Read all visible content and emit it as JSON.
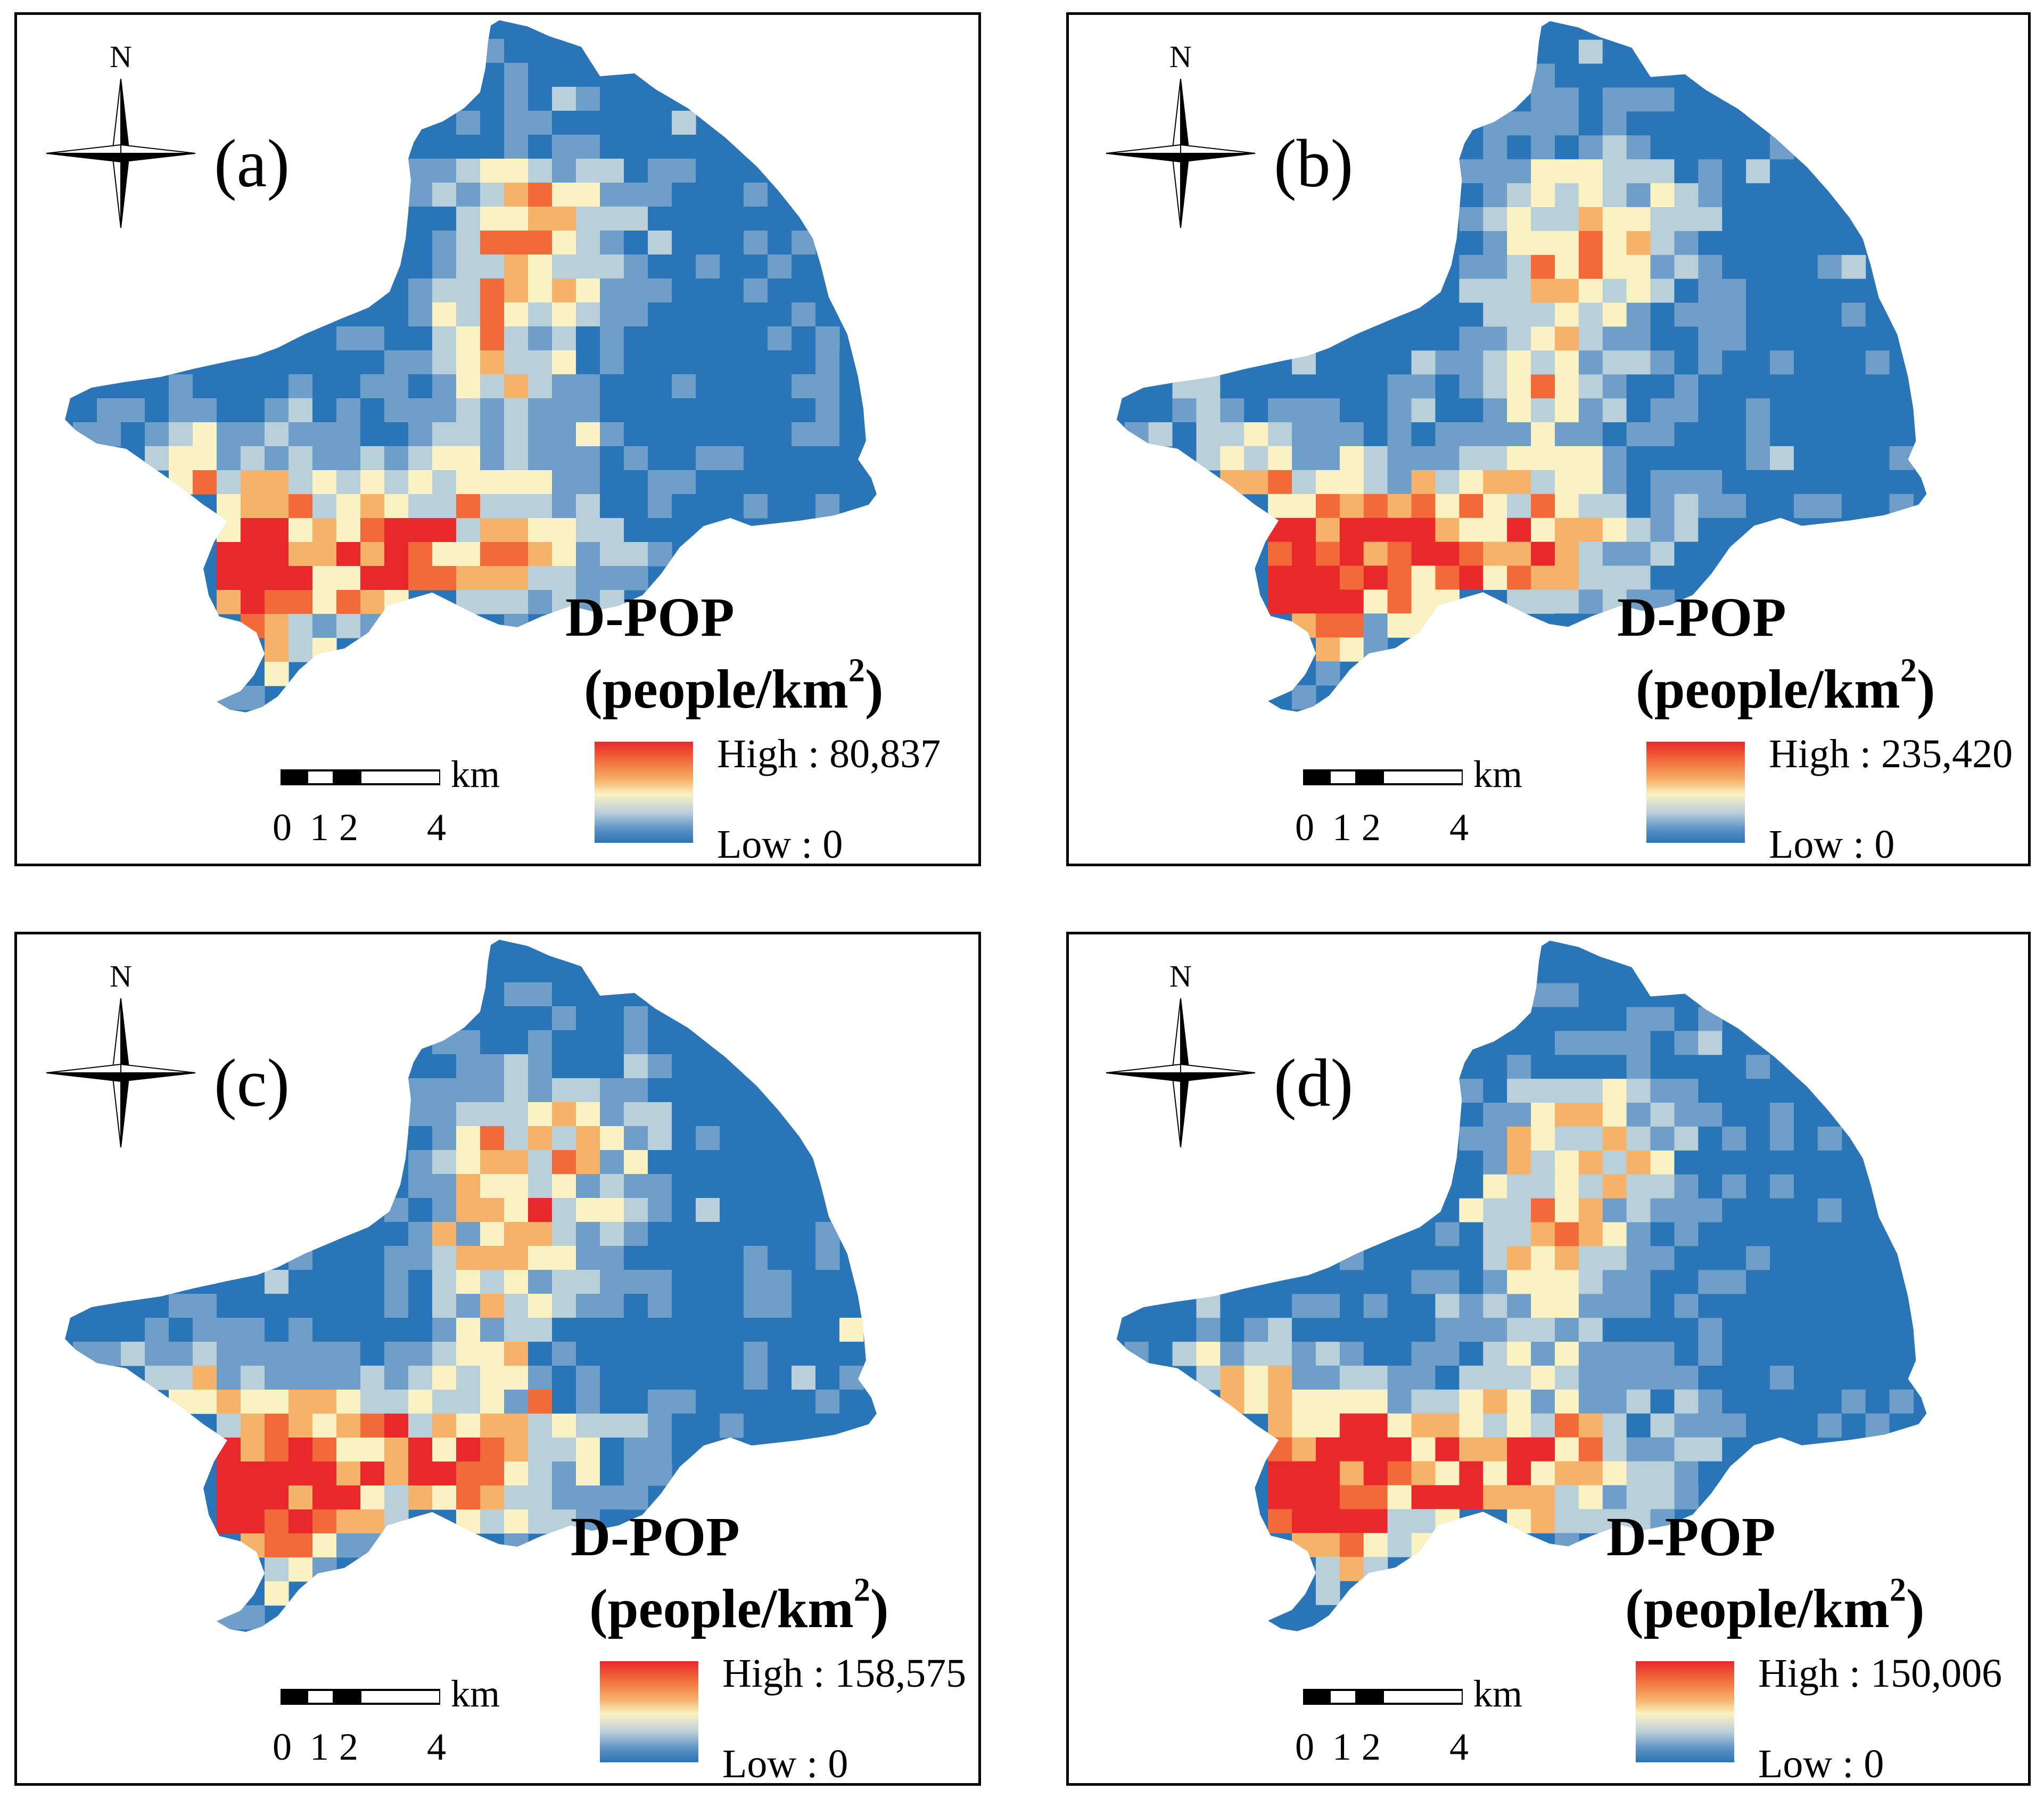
{
  "panels": [
    {
      "label": "(a)",
      "north": "N",
      "legend_title": "D-POP",
      "unit_prefix": "(people/km",
      "unit_exp": "2",
      "unit_suffix": ")",
      "high": "High : 80,837",
      "low": "Low : 0",
      "scale_unit": "km",
      "scale_ticks": [
        "0",
        "1",
        "2",
        "4"
      ],
      "seed": 11
    },
    {
      "label": "(b)",
      "north": "N",
      "legend_title": "D-POP",
      "unit_prefix": "(people/km",
      "unit_exp": "2",
      "unit_suffix": ")",
      "high": "High : 235,420",
      "low": "Low : 0",
      "scale_unit": "km",
      "scale_ticks": [
        "0",
        "1",
        "2",
        "4"
      ],
      "seed": 23
    },
    {
      "label": "(c)",
      "north": "N",
      "legend_title": "D-POP",
      "unit_prefix": "(people/km",
      "unit_exp": "2",
      "unit_suffix": ")",
      "high": "High : 158,575",
      "low": "Low : 0",
      "scale_unit": "km",
      "scale_ticks": [
        "0",
        "1",
        "2",
        "4"
      ],
      "seed": 37
    },
    {
      "label": "(d)",
      "north": "N",
      "legend_title": "D-POP",
      "unit_prefix": "(people/km",
      "unit_exp": "2",
      "unit_suffix": ")",
      "high": "High : 150,006",
      "low": "Low : 0",
      "scale_unit": "km",
      "scale_ticks": [
        "0",
        "1",
        "2",
        "4"
      ],
      "seed": 53
    }
  ],
  "colors": {
    "high": "#e8282a",
    "mid": "#faf2c2",
    "low": "#2a74b8",
    "ramp": [
      "#2a74b8",
      "#6f9fc9",
      "#b9d0da",
      "#faf2c2",
      "#f7b26a",
      "#f26a3a",
      "#e8282a"
    ]
  },
  "icons": {
    "north_arrow": "compass-rose-icon"
  }
}
